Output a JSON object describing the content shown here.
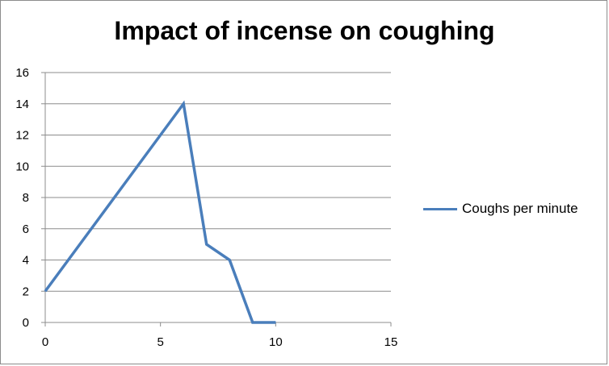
{
  "chart_data": {
    "type": "line",
    "title": "Impact of incense on coughing",
    "xlabel": "",
    "ylabel": "",
    "xlim": [
      0,
      15
    ],
    "ylim": [
      0,
      16
    ],
    "x_ticks": [
      0,
      5,
      10,
      15
    ],
    "y_ticks": [
      0,
      2,
      4,
      6,
      8,
      10,
      12,
      14,
      16
    ],
    "grid": "horizontal",
    "legend_position": "right",
    "series": [
      {
        "name": "Coughs per minute",
        "color": "#4a7ebb",
        "x": [
          0,
          1,
          2,
          3,
          4,
          5,
          6,
          7,
          8,
          9,
          10
        ],
        "y": [
          2,
          4,
          6,
          8,
          10,
          12,
          14,
          5,
          4,
          0,
          0
        ]
      }
    ]
  }
}
